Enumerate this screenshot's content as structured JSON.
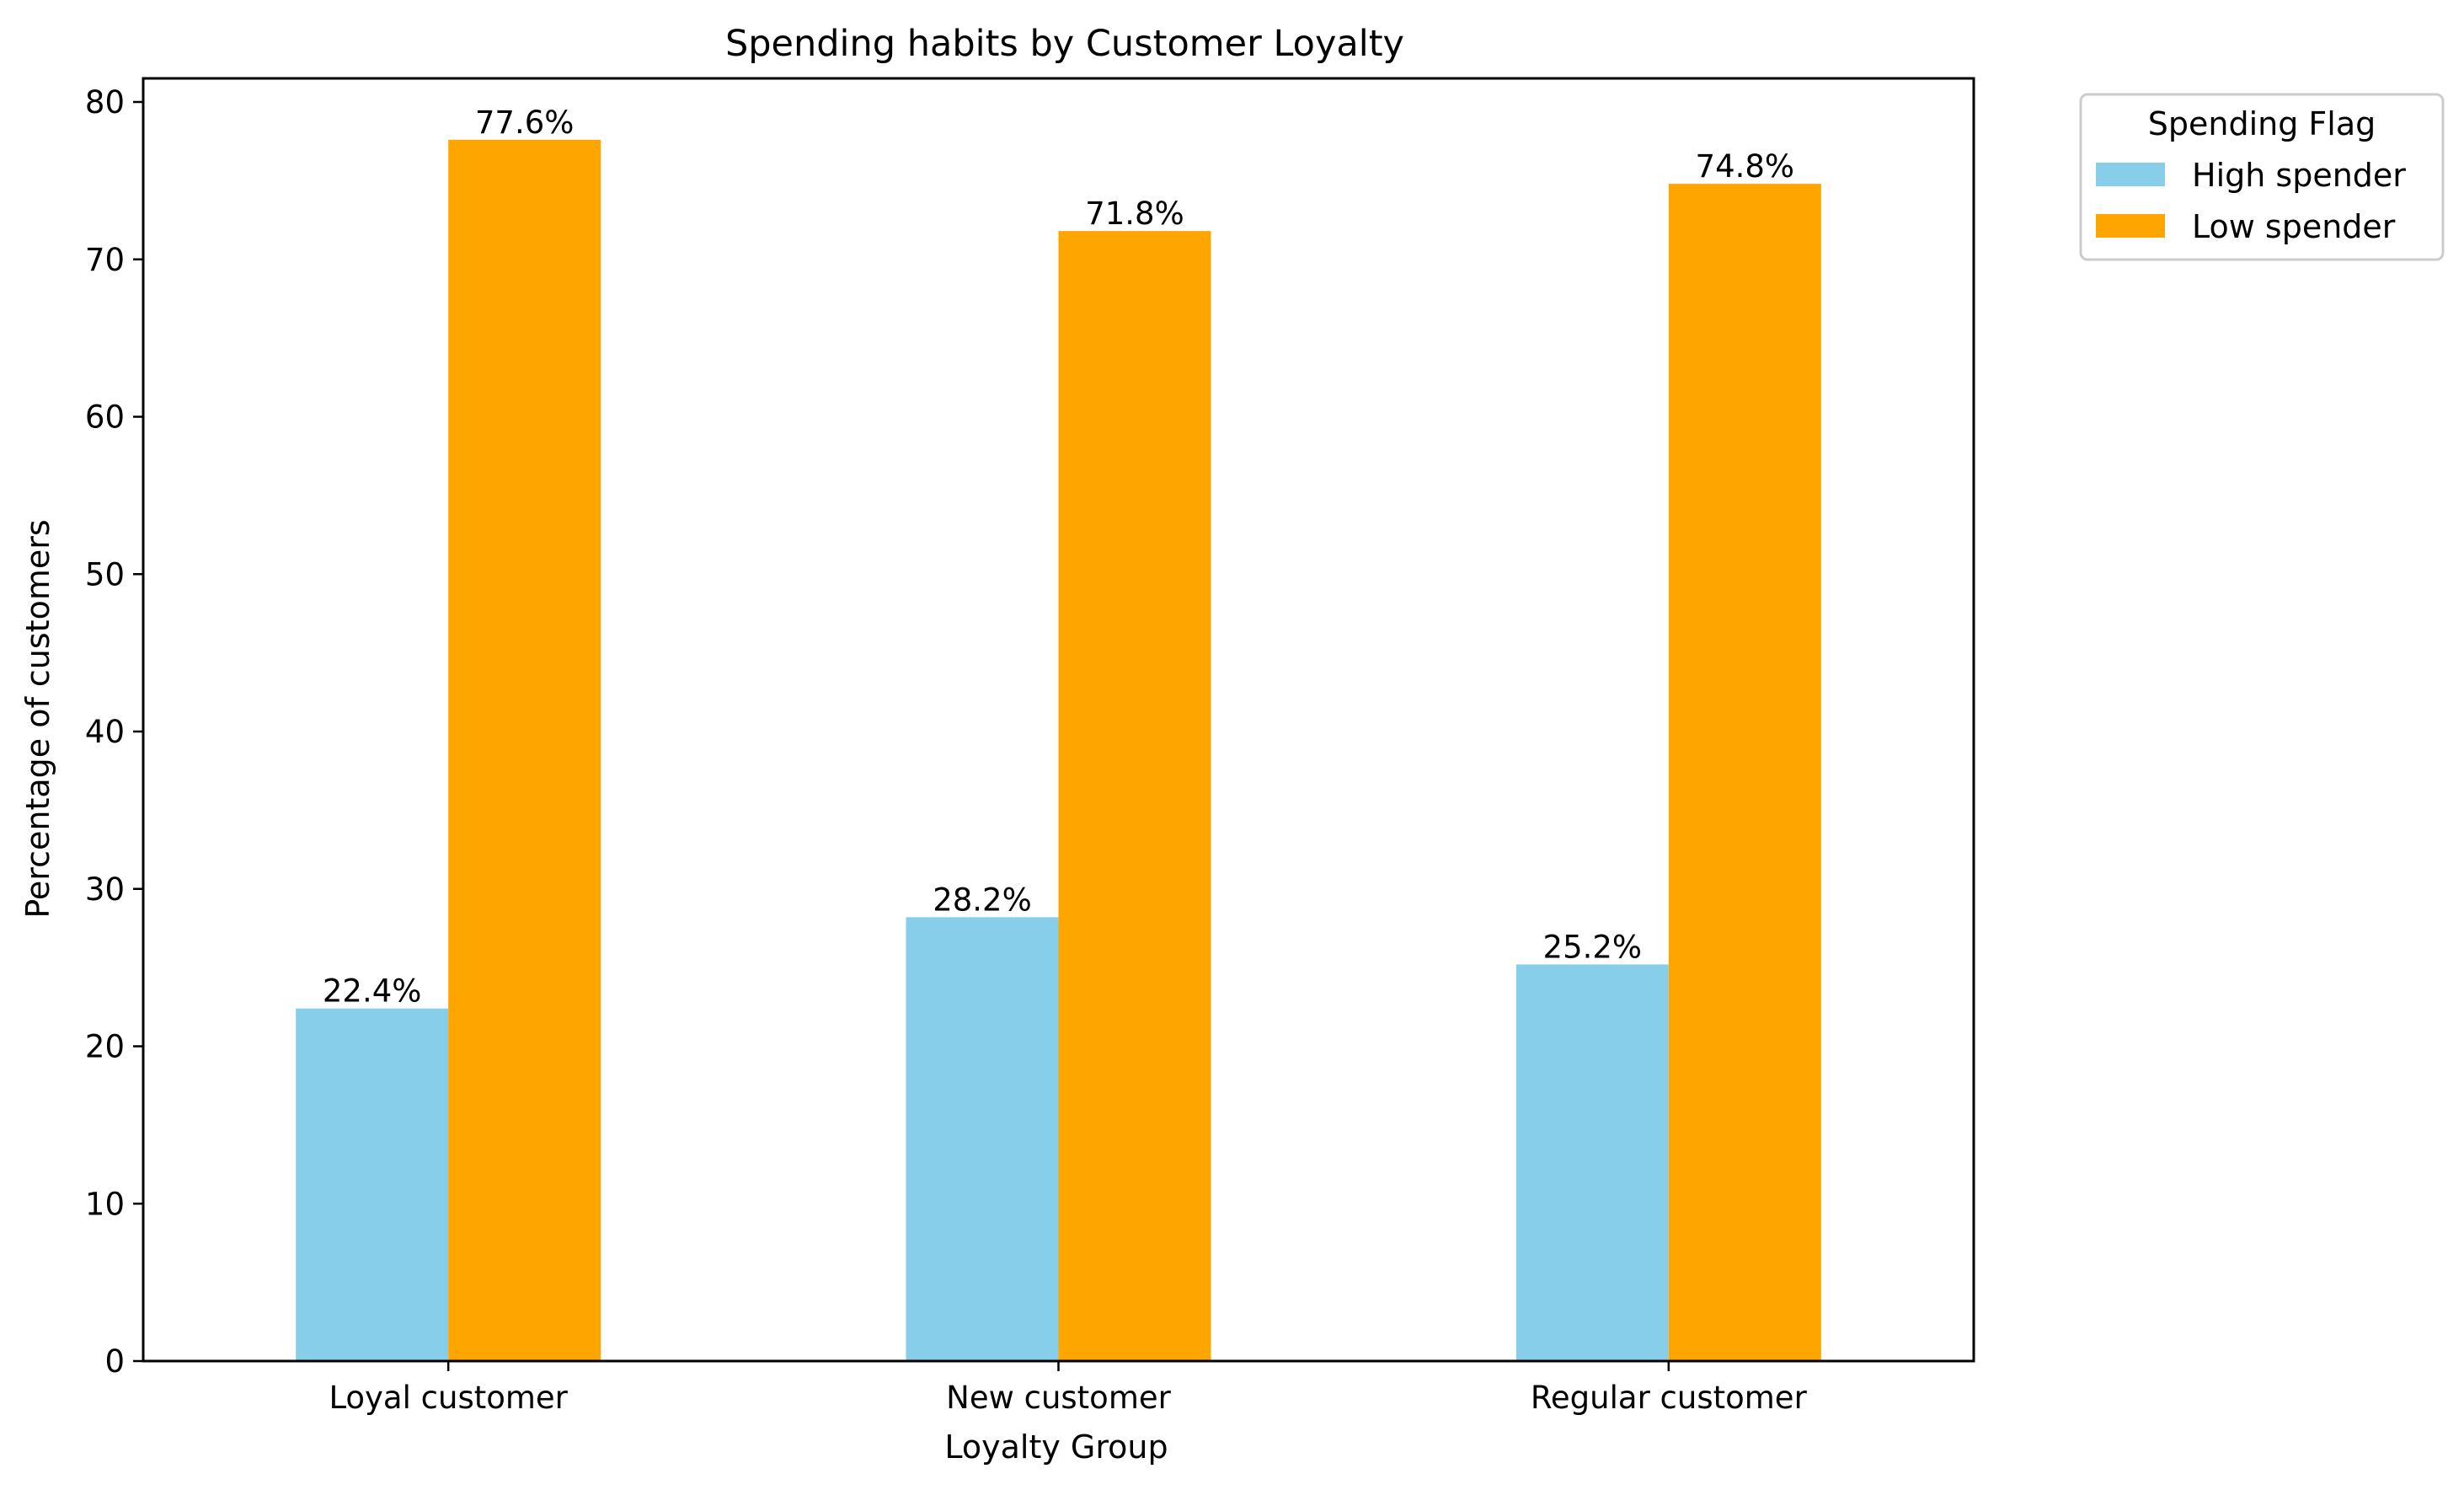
{
  "chart_data": {
    "type": "bar",
    "title": "Spending habits by Customer Loyalty",
    "xlabel": "Loyalty Group",
    "ylabel": "Percentage of customers",
    "categories": [
      "Loyal customer",
      "New customer",
      "Regular customer"
    ],
    "series": [
      {
        "name": "High spender",
        "color": "#87CEEB",
        "values": [
          22.4,
          28.2,
          25.2
        ],
        "labels": [
          "22.4%",
          "28.2%",
          "25.2%"
        ]
      },
      {
        "name": "Low spender",
        "color": "#FFA500",
        "values": [
          77.6,
          71.8,
          74.8
        ],
        "labels": [
          "77.6%",
          "71.8%",
          "74.8%"
        ]
      }
    ],
    "ylim": [
      0,
      81.5
    ],
    "yticks": [
      0,
      10,
      20,
      30,
      40,
      50,
      60,
      70,
      80
    ],
    "grid": false,
    "legend": {
      "title": "Spending Flag",
      "placement": "outside-top-right"
    }
  }
}
